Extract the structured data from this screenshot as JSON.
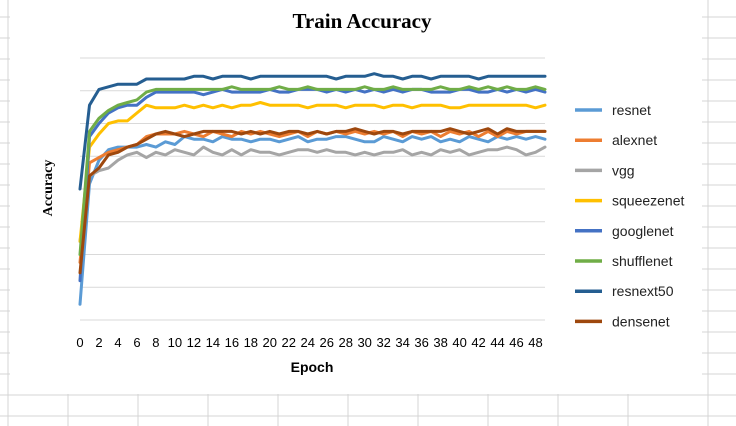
{
  "chart_data": {
    "type": "line",
    "title": "Train Accuracy",
    "xlabel": "Epoch",
    "ylabel": "Accuracy",
    "x": [
      0,
      1,
      2,
      3,
      4,
      5,
      6,
      7,
      8,
      9,
      10,
      11,
      12,
      13,
      14,
      15,
      16,
      17,
      18,
      19,
      20,
      21,
      22,
      23,
      24,
      25,
      26,
      27,
      28,
      29,
      30,
      31,
      32,
      33,
      34,
      35,
      36,
      37,
      38,
      39,
      40,
      41,
      42,
      43,
      44,
      45,
      46,
      47,
      48,
      49
    ],
    "xticks": [
      "0",
      "2",
      "4",
      "6",
      "8",
      "10",
      "12",
      "14",
      "16",
      "18",
      "20",
      "22",
      "24",
      "26",
      "28",
      "30",
      "32",
      "34",
      "36",
      "38",
      "40",
      "42",
      "44",
      "46",
      "48"
    ],
    "ylim": [
      0,
      1
    ],
    "grid": true,
    "legend": "right",
    "series": [
      {
        "name": "resnet",
        "color": "#5B9BD5",
        "values": [
          0.06,
          0.52,
          0.61,
          0.65,
          0.66,
          0.66,
          0.66,
          0.67,
          0.66,
          0.68,
          0.67,
          0.7,
          0.69,
          0.69,
          0.68,
          0.7,
          0.69,
          0.69,
          0.68,
          0.69,
          0.69,
          0.68,
          0.69,
          0.7,
          0.68,
          0.69,
          0.69,
          0.7,
          0.7,
          0.69,
          0.68,
          0.68,
          0.7,
          0.69,
          0.68,
          0.7,
          0.69,
          0.7,
          0.68,
          0.69,
          0.68,
          0.7,
          0.69,
          0.68,
          0.7,
          0.69,
          0.7,
          0.69,
          0.7,
          0.69
        ]
      },
      {
        "name": "alexnet",
        "color": "#ED7D31",
        "values": [
          0.22,
          0.6,
          0.62,
          0.64,
          0.65,
          0.66,
          0.67,
          0.7,
          0.71,
          0.71,
          0.71,
          0.72,
          0.71,
          0.7,
          0.72,
          0.71,
          0.7,
          0.72,
          0.71,
          0.72,
          0.71,
          0.7,
          0.71,
          0.72,
          0.7,
          0.72,
          0.71,
          0.72,
          0.71,
          0.72,
          0.71,
          0.72,
          0.71,
          0.72,
          0.7,
          0.72,
          0.71,
          0.72,
          0.7,
          0.72,
          0.71,
          0.72,
          0.7,
          0.72,
          0.7,
          0.72,
          0.71,
          0.72,
          0.72,
          0.72
        ]
      },
      {
        "name": "vgg",
        "color": "#A5A5A5",
        "values": [
          0.3,
          0.55,
          0.57,
          0.58,
          0.61,
          0.63,
          0.64,
          0.62,
          0.64,
          0.63,
          0.65,
          0.64,
          0.63,
          0.66,
          0.64,
          0.63,
          0.65,
          0.63,
          0.65,
          0.64,
          0.64,
          0.63,
          0.64,
          0.65,
          0.65,
          0.64,
          0.65,
          0.64,
          0.64,
          0.63,
          0.64,
          0.63,
          0.64,
          0.64,
          0.65,
          0.63,
          0.64,
          0.63,
          0.65,
          0.64,
          0.65,
          0.63,
          0.64,
          0.65,
          0.65,
          0.66,
          0.65,
          0.63,
          0.64,
          0.66
        ]
      },
      {
        "name": "squeezenet",
        "color": "#FFC000",
        "values": [
          0.3,
          0.66,
          0.71,
          0.75,
          0.76,
          0.76,
          0.79,
          0.82,
          0.81,
          0.81,
          0.81,
          0.82,
          0.81,
          0.82,
          0.81,
          0.82,
          0.81,
          0.82,
          0.82,
          0.83,
          0.82,
          0.82,
          0.82,
          0.82,
          0.81,
          0.82,
          0.82,
          0.82,
          0.81,
          0.82,
          0.82,
          0.82,
          0.81,
          0.82,
          0.82,
          0.81,
          0.82,
          0.82,
          0.82,
          0.81,
          0.81,
          0.82,
          0.82,
          0.82,
          0.82,
          0.82,
          0.82,
          0.82,
          0.81,
          0.82
        ]
      },
      {
        "name": "googlenet",
        "color": "#4472C4",
        "values": [
          0.15,
          0.7,
          0.75,
          0.79,
          0.81,
          0.82,
          0.82,
          0.85,
          0.87,
          0.87,
          0.87,
          0.87,
          0.87,
          0.86,
          0.87,
          0.88,
          0.87,
          0.87,
          0.87,
          0.87,
          0.88,
          0.87,
          0.87,
          0.88,
          0.88,
          0.88,
          0.87,
          0.88,
          0.87,
          0.88,
          0.87,
          0.88,
          0.87,
          0.88,
          0.87,
          0.88,
          0.88,
          0.87,
          0.87,
          0.87,
          0.88,
          0.88,
          0.87,
          0.87,
          0.88,
          0.87,
          0.88,
          0.87,
          0.88,
          0.87
        ]
      },
      {
        "name": "shufflenet",
        "color": "#70AD47",
        "values": [
          0.25,
          0.72,
          0.77,
          0.8,
          0.82,
          0.83,
          0.84,
          0.87,
          0.88,
          0.88,
          0.88,
          0.88,
          0.88,
          0.88,
          0.88,
          0.88,
          0.89,
          0.88,
          0.88,
          0.88,
          0.88,
          0.89,
          0.88,
          0.88,
          0.89,
          0.88,
          0.88,
          0.88,
          0.88,
          0.88,
          0.89,
          0.88,
          0.88,
          0.89,
          0.88,
          0.88,
          0.88,
          0.88,
          0.89,
          0.88,
          0.88,
          0.89,
          0.88,
          0.89,
          0.88,
          0.89,
          0.88,
          0.88,
          0.89,
          0.88
        ]
      },
      {
        "name": "resnext50",
        "color": "#255E91",
        "values": [
          0.5,
          0.82,
          0.88,
          0.89,
          0.9,
          0.9,
          0.9,
          0.92,
          0.92,
          0.92,
          0.92,
          0.92,
          0.93,
          0.93,
          0.92,
          0.93,
          0.93,
          0.93,
          0.92,
          0.93,
          0.93,
          0.93,
          0.93,
          0.93,
          0.93,
          0.93,
          0.93,
          0.92,
          0.93,
          0.93,
          0.93,
          0.94,
          0.93,
          0.93,
          0.92,
          0.93,
          0.93,
          0.92,
          0.93,
          0.93,
          0.93,
          0.93,
          0.92,
          0.93,
          0.93,
          0.93,
          0.93,
          0.93,
          0.93,
          0.93
        ]
      },
      {
        "name": "densenet",
        "color": "#9E480E",
        "values": [
          0.18,
          0.55,
          0.58,
          0.63,
          0.64,
          0.66,
          0.67,
          0.69,
          0.71,
          0.72,
          0.71,
          0.7,
          0.71,
          0.72,
          0.72,
          0.72,
          0.72,
          0.71,
          0.72,
          0.71,
          0.72,
          0.71,
          0.72,
          0.72,
          0.71,
          0.72,
          0.71,
          0.72,
          0.72,
          0.73,
          0.72,
          0.71,
          0.72,
          0.72,
          0.71,
          0.72,
          0.72,
          0.72,
          0.72,
          0.73,
          0.72,
          0.71,
          0.72,
          0.73,
          0.71,
          0.73,
          0.72,
          0.72,
          0.72,
          0.72
        ]
      }
    ]
  }
}
